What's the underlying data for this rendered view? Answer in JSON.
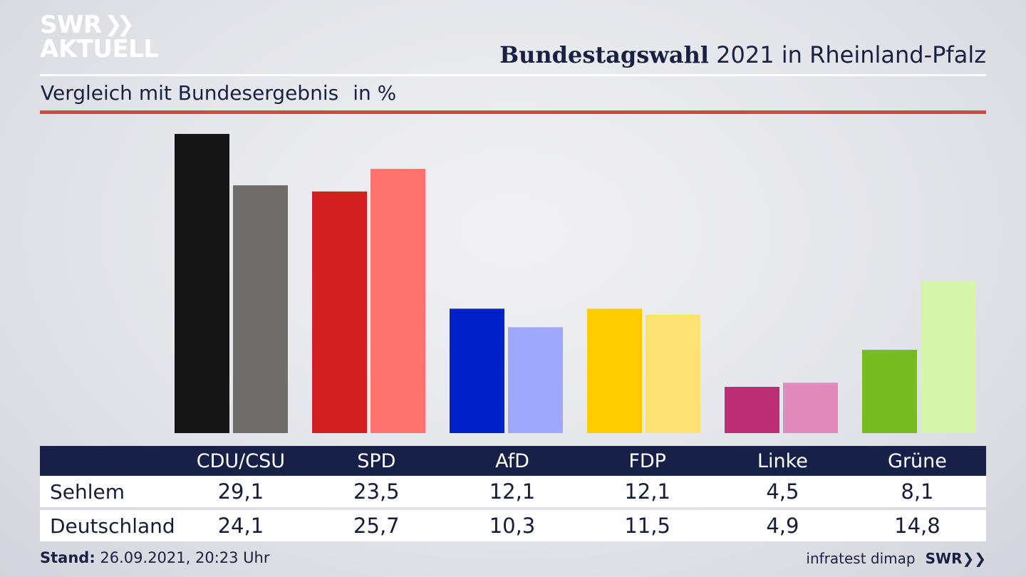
{
  "brand": {
    "logo_line1": "SWR",
    "logo_chevrons": "❯❯",
    "logo_line2": "AKTUELL"
  },
  "title": {
    "bold": "Bundestagswahl",
    "rest": " 2021 in Rheinland-Pfalz"
  },
  "subtitle": {
    "text": "Vergleich mit Bundesergebnis",
    "unit": "in %"
  },
  "colors": {
    "rule": "#d4473e",
    "table_header": "#172046"
  },
  "chart_data": {
    "type": "bar",
    "categories": [
      "CDU/CSU",
      "SPD",
      "AfD",
      "FDP",
      "Linke",
      "Grüne"
    ],
    "series": [
      {
        "name": "Sehlem",
        "values": [
          29.1,
          23.5,
          12.1,
          12.1,
          4.5,
          8.1
        ],
        "colors": [
          "#151515",
          "#d21e1e",
          "#0020c8",
          "#ffcc00",
          "#bb2e74",
          "#77bb22"
        ]
      },
      {
        "name": "Deutschland",
        "values": [
          24.1,
          25.7,
          10.3,
          11.5,
          4.9,
          14.8
        ],
        "colors": [
          "#6f6d6b",
          "#fe736d",
          "#9ea9fe",
          "#fde173",
          "#e08bbb",
          "#d5f5ac"
        ]
      }
    ],
    "ylim": [
      0,
      29.1
    ],
    "legend": "table-below"
  },
  "table": {
    "headers": [
      "",
      "CDU/CSU",
      "SPD",
      "AfD",
      "FDP",
      "Linke",
      "Grüne"
    ],
    "rows": [
      {
        "label": "Sehlem",
        "cells": [
          "29,1",
          "23,5",
          "12,1",
          "12,1",
          "4,5",
          "8,1"
        ]
      },
      {
        "label": "Deutschland",
        "cells": [
          "24,1",
          "25,7",
          "10,3",
          "11,5",
          "4,9",
          "14,8"
        ]
      }
    ]
  },
  "footer": {
    "stand_label": "Stand:",
    "stand_value": " 26.09.2021, 20:23 Uhr",
    "source": "infratest dimap",
    "swr": "SWR",
    "swr_chevrons": "❯❯"
  }
}
